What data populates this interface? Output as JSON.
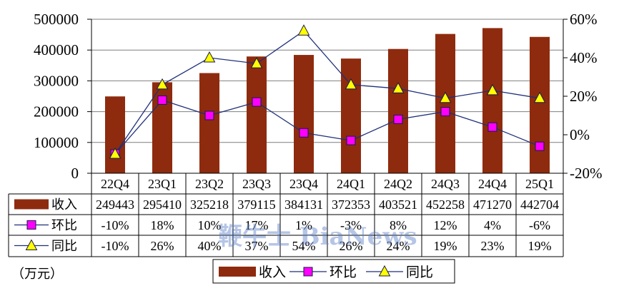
{
  "unit_label": "（万元）",
  "watermark": "鞭牛士 BiaNews",
  "colors": {
    "bar": "#8E2B0E",
    "line": "#1F2F7A",
    "qoq_marker": "#FF00FF",
    "yoy_marker": "#FFFF00",
    "marker_outline": "#1A1A4A",
    "grid": "#7F7F7F",
    "table_border": "#000000",
    "watermark": "#5B7FC7"
  },
  "chart_data": {
    "type": "bar",
    "categories": [
      "22Q4",
      "23Q1",
      "23Q2",
      "23Q3",
      "23Q4",
      "24Q1",
      "24Q2",
      "24Q3",
      "24Q4",
      "25Q1"
    ],
    "series": [
      {
        "name": "收入",
        "type": "bar",
        "axis": "left",
        "marker": "bar-swatch",
        "values": [
          249443,
          295410,
          325218,
          379115,
          384131,
          372353,
          403521,
          452258,
          471270,
          442704
        ]
      },
      {
        "name": "环比",
        "type": "line",
        "axis": "right",
        "marker": "square-marker",
        "values": [
          -10,
          18,
          10,
          17,
          1,
          -3,
          8,
          12,
          4,
          -6
        ],
        "labels": [
          "-10%",
          "18%",
          "10%",
          "17%",
          "1%",
          "-3%",
          "8%",
          "12%",
          "4%",
          "-6%"
        ]
      },
      {
        "name": "同比",
        "type": "line",
        "axis": "right",
        "marker": "triangle-marker",
        "values": [
          -10,
          26,
          40,
          37,
          54,
          26,
          24,
          19,
          23,
          19
        ],
        "labels": [
          "-10%",
          "26%",
          "40%",
          "37%",
          "54%",
          "26%",
          "24%",
          "19%",
          "23%",
          "19%"
        ]
      }
    ],
    "y_left": {
      "ylim": [
        0,
        500000
      ],
      "ticks": [
        0,
        100000,
        200000,
        300000,
        400000,
        500000
      ],
      "tick_labels": [
        "0",
        "100000",
        "200000",
        "300000",
        "400000",
        "500000"
      ]
    },
    "y_right": {
      "ylim": [
        -20,
        60
      ],
      "ticks": [
        -20,
        0,
        20,
        40,
        60
      ],
      "tick_labels": [
        "-20%",
        "0%",
        "20%",
        "40%",
        "60%"
      ]
    },
    "grid": true,
    "legend": "bottom",
    "data_table": true
  }
}
